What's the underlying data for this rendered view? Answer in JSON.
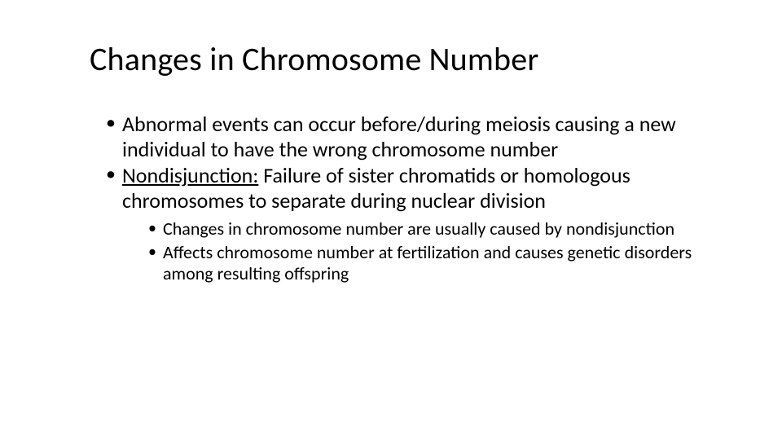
{
  "slide": {
    "title": "Changes in Chromosome Number",
    "title_fontsize": 40,
    "title_color": "#000000",
    "background_color": "#ffffff",
    "body_color": "#000000",
    "level1_fontsize": 26,
    "level2_fontsize": 22,
    "bullets": {
      "b1": "Abnormal events can occur before/during meiosis causing a new individual to have the wrong chromosome number",
      "b2_term": "Nondisjunction:",
      "b2_rest": " Failure of sister chromatids or homologous chromosomes to separate during nuclear division",
      "b2_sub1": "Changes in chromosome number are usually caused by nondisjunction",
      "b2_sub2": "Affects chromosome number at fertilization and causes genetic disorders among resulting offspring"
    }
  }
}
